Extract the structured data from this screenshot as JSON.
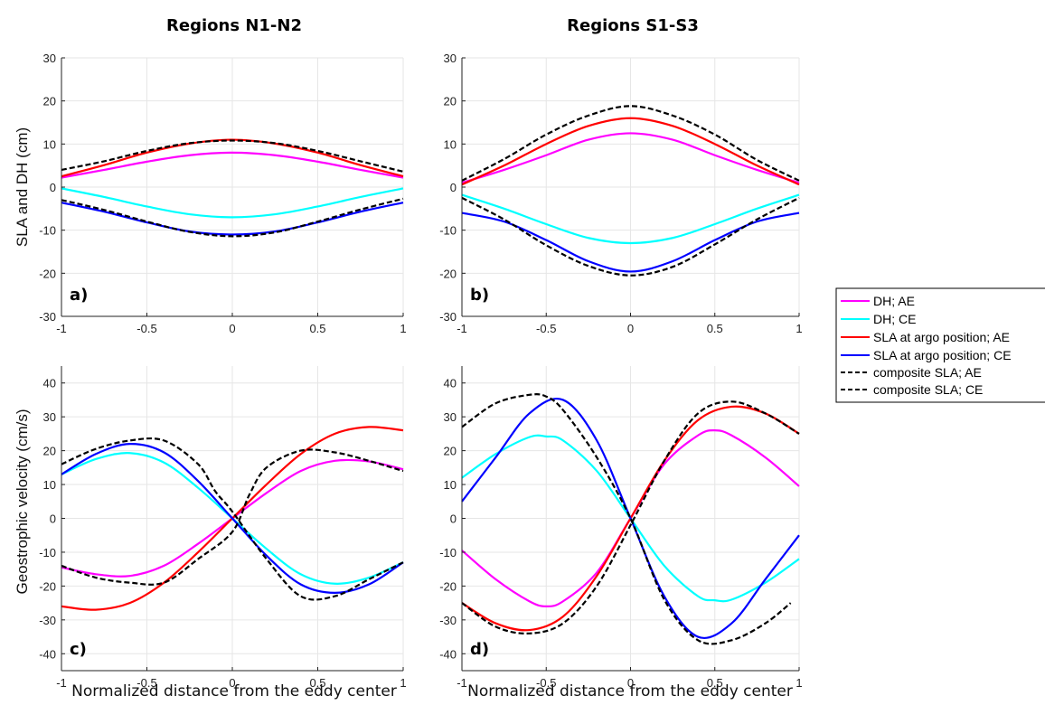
{
  "figure": {
    "column_titles": [
      "Regions N1-N2",
      "Regions S1-S3"
    ],
    "xlabel": "Normalized distance from the eddy center",
    "ylabels": {
      "top": "SLA and DH (cm)",
      "bottom": "Geostrophic velocity (cm/s)"
    }
  },
  "legend": {
    "entries": [
      {
        "label": "DH; AE",
        "color": "#ff00ff",
        "style": "solid"
      },
      {
        "label": "DH; CE",
        "color": "#00ffff",
        "style": "solid"
      },
      {
        "label": "SLA at argo position; AE",
        "color": "#ff0000",
        "style": "solid"
      },
      {
        "label": "SLA at argo position; CE",
        "color": "#0000ff",
        "style": "solid"
      },
      {
        "label": "composite SLA; AE",
        "color": "#000000",
        "style": "dashed"
      },
      {
        "label": "composite SLA; CE",
        "color": "#000000",
        "style": "dashed"
      }
    ]
  },
  "colors": {
    "dh_ae": "#ff00ff",
    "dh_ce": "#00ffff",
    "sla_ae": "#ff0000",
    "sla_ce": "#0000ff",
    "composite": "#000000",
    "grid": "#e6e6e6"
  },
  "chart_data": [
    {
      "type": "line",
      "panel": "a)",
      "xlim": [
        -1,
        1
      ],
      "ylim": [
        -30,
        30
      ],
      "xticks": [
        -1,
        -0.5,
        0,
        0.5,
        1
      ],
      "xtick_labels": [
        "-1",
        "-0.5",
        "0",
        "0.5",
        "1"
      ],
      "yticks": [
        -30,
        -20,
        -10,
        0,
        10,
        20,
        30
      ],
      "ytick_labels": [
        "-30",
        "-20",
        "-10",
        "0",
        "10",
        "20",
        "30"
      ],
      "grid": true,
      "series": [
        {
          "name": "DH; AE",
          "x": [
            -1,
            -0.75,
            -0.5,
            -0.25,
            0,
            0.25,
            0.5,
            0.75,
            1
          ],
          "y": [
            2.2,
            4.0,
            5.9,
            7.4,
            8.0,
            7.4,
            5.9,
            4.0,
            2.2
          ]
        },
        {
          "name": "DH; CE",
          "x": [
            -1,
            -0.75,
            -0.5,
            -0.25,
            0,
            0.25,
            0.5,
            0.75,
            1
          ],
          "y": [
            -0.3,
            -2.3,
            -4.5,
            -6.3,
            -7.0,
            -6.3,
            -4.5,
            -2.3,
            -0.3
          ]
        },
        {
          "name": "SLA at argo position; AE",
          "x": [
            -1,
            -0.75,
            -0.5,
            -0.25,
            0,
            0.25,
            0.5,
            0.75,
            1
          ],
          "y": [
            2.5,
            5.1,
            8.0,
            10.1,
            11.0,
            10.1,
            8.0,
            5.1,
            2.5
          ]
        },
        {
          "name": "SLA at argo position; CE",
          "x": [
            -1,
            -0.75,
            -0.5,
            -0.25,
            0,
            0.25,
            0.5,
            0.75,
            1
          ],
          "y": [
            -3.6,
            -5.7,
            -8.2,
            -10.3,
            -11.0,
            -10.3,
            -8.2,
            -5.7,
            -3.6
          ]
        },
        {
          "name": "composite SLA; AE",
          "x": [
            -1,
            -0.75,
            -0.5,
            -0.25,
            0,
            0.25,
            0.5,
            0.75,
            1
          ],
          "y": [
            4.0,
            6.0,
            8.4,
            10.2,
            10.8,
            10.2,
            8.4,
            6.0,
            3.6
          ]
        },
        {
          "name": "composite SLA; CE",
          "x": [
            -1,
            -0.75,
            -0.5,
            -0.25,
            0,
            0.25,
            0.5,
            0.75,
            1
          ],
          "y": [
            -3.0,
            -5.3,
            -8.0,
            -10.4,
            -11.4,
            -10.5,
            -8.0,
            -5.2,
            -2.7
          ]
        }
      ]
    },
    {
      "type": "line",
      "panel": "b)",
      "xlim": [
        -1,
        1
      ],
      "ylim": [
        -30,
        30
      ],
      "xticks": [
        -1,
        -0.5,
        0,
        0.5,
        1
      ],
      "xtick_labels": [
        "-1",
        "-0.5",
        "0",
        "0.5",
        "1"
      ],
      "yticks": [
        -30,
        -20,
        -10,
        0,
        10,
        20,
        30
      ],
      "ytick_labels": [
        "-30",
        "-20",
        "-10",
        "0",
        "10",
        "20",
        "30"
      ],
      "grid": true,
      "series": [
        {
          "name": "DH; AE",
          "x": [
            -1,
            -0.75,
            -0.5,
            -0.25,
            0,
            0.25,
            0.5,
            0.75,
            1
          ],
          "y": [
            1.0,
            4.0,
            7.4,
            11.0,
            12.5,
            11.0,
            7.4,
            4.0,
            1.0
          ]
        },
        {
          "name": "DH; CE",
          "x": [
            -1,
            -0.75,
            -0.5,
            -0.25,
            0,
            0.25,
            0.5,
            0.75,
            1
          ],
          "y": [
            -1.8,
            -5.0,
            -8.6,
            -11.8,
            -13.0,
            -11.8,
            -8.6,
            -5.0,
            -1.8
          ]
        },
        {
          "name": "SLA at argo position; AE",
          "x": [
            -1,
            -0.75,
            -0.5,
            -0.25,
            0,
            0.25,
            0.5,
            0.75,
            1
          ],
          "y": [
            0.6,
            5.0,
            10.0,
            14.2,
            16.0,
            14.2,
            10.0,
            5.0,
            0.6
          ]
        },
        {
          "name": "SLA at argo position; CE",
          "x": [
            -1,
            -0.75,
            -0.5,
            -0.25,
            0,
            0.25,
            0.5,
            0.75,
            1
          ],
          "y": [
            -6.0,
            -8.0,
            -12.3,
            -17.2,
            -19.6,
            -17.2,
            -12.3,
            -8.0,
            -6.0
          ]
        },
        {
          "name": "composite SLA; AE",
          "x": [
            -1,
            -0.75,
            -0.5,
            -0.25,
            0,
            0.25,
            0.5,
            0.75,
            1
          ],
          "y": [
            1.5,
            6.5,
            12.2,
            16.6,
            18.8,
            16.6,
            12.2,
            6.3,
            1.5
          ]
        },
        {
          "name": "composite SLA; CE",
          "x": [
            -1,
            -0.75,
            -0.5,
            -0.25,
            0,
            0.25,
            0.5,
            0.75,
            1
          ],
          "y": [
            -2.5,
            -7.5,
            -13.5,
            -18.3,
            -20.5,
            -18.5,
            -13.3,
            -7.5,
            -2.5
          ]
        }
      ]
    },
    {
      "type": "line",
      "panel": "c)",
      "xlim": [
        -1,
        1
      ],
      "ylim": [
        -45,
        45
      ],
      "xticks": [
        -1,
        -0.5,
        0,
        0.5,
        1
      ],
      "xtick_labels": [
        "-1",
        "-0.5",
        "0",
        "0.5",
        "1"
      ],
      "yticks": [
        -40,
        -30,
        -20,
        -10,
        0,
        10,
        20,
        30,
        40
      ],
      "ytick_labels": [
        "-40",
        "-30",
        "-20",
        "-10",
        "0",
        "10",
        "20",
        "30",
        "40"
      ],
      "grid": true,
      "series": [
        {
          "name": "DH; AE",
          "x": [
            -1,
            -0.8,
            -0.6,
            -0.4,
            -0.2,
            0,
            0.2,
            0.4,
            0.6,
            0.8,
            1
          ],
          "y": [
            -14.5,
            -16.5,
            -17.0,
            -14.0,
            -7.5,
            0,
            7.5,
            14.0,
            17.0,
            16.8,
            14.5
          ]
        },
        {
          "name": "DH; CE",
          "x": [
            -1,
            -0.8,
            -0.6,
            -0.4,
            -0.2,
            0,
            0.2,
            0.4,
            0.6,
            0.8,
            1
          ],
          "y": [
            13.0,
            17.5,
            19.3,
            16.5,
            9.0,
            0,
            -9.0,
            -16.5,
            -19.3,
            -17.5,
            -13.0
          ]
        },
        {
          "name": "SLA at argo position; AE",
          "x": [
            -1,
            -0.8,
            -0.6,
            -0.4,
            -0.2,
            0,
            0.2,
            0.4,
            0.6,
            0.8,
            1
          ],
          "y": [
            -26.0,
            -27.0,
            -25.0,
            -19.0,
            -10.0,
            0,
            10.0,
            19.0,
            25.0,
            27.0,
            26.0
          ]
        },
        {
          "name": "SLA at argo position; CE",
          "x": [
            -1,
            -0.8,
            -0.6,
            -0.4,
            -0.2,
            0,
            0.2,
            0.4,
            0.6,
            0.8,
            1
          ],
          "y": [
            13.0,
            19.0,
            22.0,
            19.5,
            11.0,
            0,
            -11.0,
            -19.5,
            -22.0,
            -19.5,
            -13.0
          ]
        },
        {
          "name": "composite SLA; AE",
          "x": [
            -1,
            -0.8,
            -0.6,
            -0.4,
            -0.2,
            0,
            0.1,
            0.2,
            0.4,
            0.6,
            0.8,
            1
          ],
          "y": [
            -14.0,
            -17.5,
            -19.0,
            -19.0,
            -12.0,
            -4.0,
            7.0,
            15.0,
            20.0,
            19.5,
            17.0,
            14.0
          ]
        },
        {
          "name": "composite SLA; CE",
          "x": [
            -1,
            -0.8,
            -0.6,
            -0.4,
            -0.2,
            -0.1,
            0,
            0.2,
            0.4,
            0.6,
            0.8,
            1
          ],
          "y": [
            16.0,
            20.5,
            23.0,
            23.0,
            16.0,
            8.0,
            2.0,
            -12.0,
            -23.0,
            -23.0,
            -18.0,
            -13.0
          ]
        }
      ]
    },
    {
      "type": "line",
      "panel": "d)",
      "xlim": [
        -1,
        1
      ],
      "ylim": [
        -45,
        45
      ],
      "xticks": [
        -1,
        -0.5,
        0,
        0.5,
        1
      ],
      "xtick_labels": [
        "-1",
        "-0.5",
        "0",
        "0.5",
        "1"
      ],
      "yticks": [
        -40,
        -30,
        -20,
        -10,
        0,
        10,
        20,
        30,
        40
      ],
      "ytick_labels": [
        "-40",
        "-30",
        "-20",
        "-10",
        "0",
        "10",
        "20",
        "30",
        "40"
      ],
      "grid": true,
      "series": [
        {
          "name": "DH; AE",
          "x": [
            -1,
            -0.8,
            -0.6,
            -0.5,
            -0.4,
            -0.2,
            0,
            0.2,
            0.4,
            0.5,
            0.6,
            0.8,
            1
          ],
          "y": [
            -9.5,
            -18.0,
            -24.5,
            -26.0,
            -24.5,
            -16.0,
            0,
            16.0,
            24.5,
            26.0,
            24.5,
            18.0,
            9.5
          ]
        },
        {
          "name": "DH; CE",
          "x": [
            -1,
            -0.8,
            -0.6,
            -0.5,
            -0.4,
            -0.2,
            0,
            0.2,
            0.4,
            0.5,
            0.6,
            0.8,
            1
          ],
          "y": [
            12.0,
            19.0,
            24.0,
            24.2,
            23.0,
            14.0,
            0,
            -14.0,
            -23.0,
            -24.2,
            -24.0,
            -19.0,
            -12.0
          ]
        },
        {
          "name": "SLA at argo position; AE",
          "x": [
            -1,
            -0.8,
            -0.6,
            -0.4,
            -0.2,
            0,
            0.2,
            0.4,
            0.6,
            0.8,
            1
          ],
          "y": [
            -25.0,
            -31.0,
            -33.0,
            -29.0,
            -17.0,
            0,
            17.0,
            29.0,
            33.0,
            31.0,
            25.0
          ]
        },
        {
          "name": "SLA at argo position; CE",
          "x": [
            -1,
            -0.8,
            -0.6,
            -0.4,
            -0.2,
            0,
            0.2,
            0.4,
            0.6,
            0.8,
            1
          ],
          "y": [
            5.0,
            18.0,
            31.0,
            35.0,
            23.0,
            0,
            -23.0,
            -35.0,
            -31.0,
            -18.0,
            -5.0
          ]
        },
        {
          "name": "composite SLA; AE",
          "x": [
            -1,
            -0.8,
            -0.6,
            -0.4,
            -0.2,
            0,
            0.2,
            0.4,
            0.6,
            0.8,
            1
          ],
          "y": [
            -25.0,
            -32.0,
            -34.0,
            -31.0,
            -20.0,
            -2.0,
            17.0,
            31.0,
            34.5,
            31.0,
            25.0
          ]
        },
        {
          "name": "composite SLA; CE",
          "x": [
            -1,
            -0.8,
            -0.6,
            -0.5,
            -0.4,
            -0.2,
            0,
            0.2,
            0.4,
            0.6,
            0.8,
            0.95
          ],
          "y": [
            27.0,
            34.0,
            36.5,
            36.0,
            32.0,
            18.0,
            0,
            -24.0,
            -36.0,
            -36.0,
            -31.0,
            -25.0
          ]
        }
      ]
    }
  ]
}
